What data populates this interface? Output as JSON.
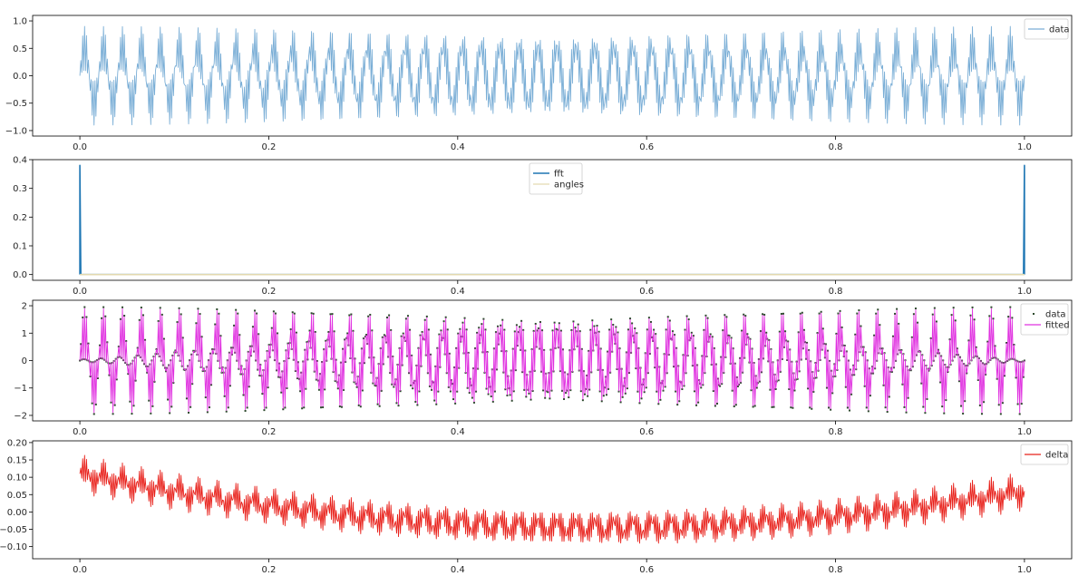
{
  "chart_data": [
    {
      "type": "line",
      "title": "",
      "xlabel": "",
      "ylabel": "",
      "xlim": [
        -0.05,
        1.05
      ],
      "ylim": [
        -1.1,
        1.1
      ],
      "xticks": [
        0.0,
        0.2,
        0.4,
        0.6,
        0.8,
        1.0
      ],
      "xtick_labels": [
        "0.0",
        "0.2",
        "0.4",
        "0.6",
        "0.8",
        "1.0"
      ],
      "yticks": [
        1.0,
        0.5,
        0.0,
        -0.5,
        -1.0
      ],
      "ytick_labels": [
        "1.0",
        "0.5",
        "0.0",
        "−0.5",
        "−1.0"
      ],
      "legend_position": "top-right",
      "series": [
        {
          "name": "data",
          "color": "#7aaed6",
          "x_range": [
            0.0,
            1.0
          ],
          "samples": 1000,
          "components": [
            {
              "freq": 50,
              "amp": 0.5,
              "phase": 0.0
            },
            {
              "freq": 450,
              "amp": 0.4,
              "phase": 0.0
            }
          ],
          "value_range": [
            -0.97,
            0.97
          ]
        }
      ]
    },
    {
      "type": "line",
      "title": "",
      "xlabel": "",
      "ylabel": "",
      "xlim": [
        -0.05,
        1.05
      ],
      "ylim": [
        -0.02,
        0.4
      ],
      "xticks": [
        0.0,
        0.2,
        0.4,
        0.6,
        0.8,
        1.0
      ],
      "xtick_labels": [
        "0.0",
        "0.2",
        "0.4",
        "0.6",
        "0.8",
        "1.0"
      ],
      "yticks": [
        0.4,
        0.3,
        0.2,
        0.1,
        0.0
      ],
      "ytick_labels": [
        "0.4",
        "0.3",
        "0.2",
        "0.1",
        "0.0"
      ],
      "legend_position": "top-center",
      "series": [
        {
          "name": "fft",
          "color": "#1f77b4",
          "x": [
            0.0,
            0.0,
            0.001,
            0.999,
            1.0,
            1.0
          ],
          "y": [
            0.0,
            0.38,
            0.0,
            0.0,
            0.38,
            0.0
          ]
        },
        {
          "name": "angles",
          "color": "#e3d9b0",
          "x": [
            0.0,
            1.0
          ],
          "y": [
            0.0,
            0.0
          ]
        }
      ]
    },
    {
      "type": "line",
      "title": "",
      "xlabel": "",
      "ylabel": "",
      "xlim": [
        -0.05,
        1.05
      ],
      "ylim": [
        -2.2,
        2.2
      ],
      "xticks": [
        0.0,
        0.2,
        0.4,
        0.6,
        0.8,
        1.0
      ],
      "xtick_labels": [
        "0.0",
        "0.2",
        "0.4",
        "0.6",
        "0.8",
        "1.0"
      ],
      "yticks": [
        2,
        1,
        0,
        -1,
        -2
      ],
      "ytick_labels": [
        "2",
        "1",
        "0",
        "−1",
        "−2"
      ],
      "legend_position": "top-right",
      "series": [
        {
          "name": "data",
          "style": "points",
          "color": "#2d4a2d",
          "x_range": [
            0.0,
            1.0
          ],
          "samples": 1000,
          "components": [
            {
              "freq": 50,
              "amp": 1.0,
              "phase": 0.0
            },
            {
              "freq": 450,
              "amp": 0.95,
              "phase": 0.0
            }
          ],
          "value_range": [
            -2.0,
            2.0
          ]
        },
        {
          "name": "fitted",
          "style": "line",
          "color": "#e033e0",
          "x_range": [
            0.0,
            1.0
          ],
          "samples": 1000,
          "components": [
            {
              "freq": 50,
              "amp": 0.97,
              "phase": 0.0
            },
            {
              "freq": 450,
              "amp": 0.93,
              "phase": 0.0
            }
          ],
          "value_range": [
            -2.0,
            2.0
          ]
        }
      ]
    },
    {
      "type": "line",
      "title": "",
      "xlabel": "",
      "ylabel": "",
      "xlim": [
        -0.05,
        1.05
      ],
      "ylim": [
        -0.135,
        0.205
      ],
      "xticks": [
        0.0,
        0.2,
        0.4,
        0.6,
        0.8,
        1.0
      ],
      "xtick_labels": [
        "0.0",
        "0.2",
        "0.4",
        "0.6",
        "0.8",
        "1.0"
      ],
      "yticks": [
        0.2,
        0.15,
        0.1,
        0.05,
        0.0,
        -0.05,
        -0.1
      ],
      "ytick_labels": [
        "0.20",
        "0.15",
        "0.10",
        "0.05",
        "0.00",
        "−0.05",
        "−0.10"
      ],
      "legend_position": "top-right",
      "series": [
        {
          "name": "delta",
          "color": "#e8201a",
          "x_range": [
            0.0,
            1.0
          ],
          "samples": 1000,
          "trend": {
            "type": "parabola",
            "start": 0.11,
            "min": -0.045,
            "min_at": 0.55,
            "end": 0.06
          },
          "components": [
            {
              "freq": 50,
              "amp": 0.018,
              "phase": 0.0
            },
            {
              "freq": 450,
              "amp": 0.038,
              "phase": 0.0
            }
          ],
          "value_range": [
            -0.125,
            0.19
          ]
        }
      ]
    }
  ]
}
